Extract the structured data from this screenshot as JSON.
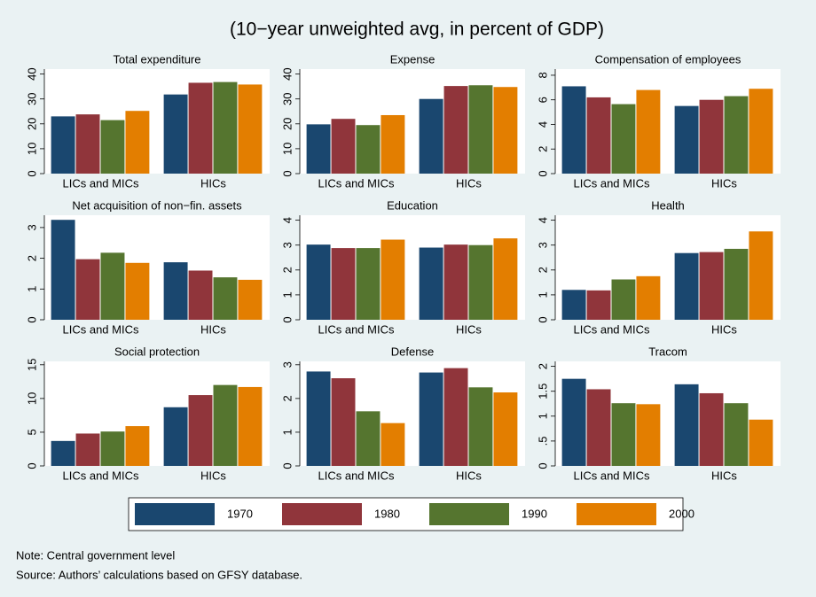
{
  "title": "(10−year unweighted avg, in percent of GDP)",
  "note": "Note: Central government level",
  "source": "Source: Authors’ calculations based on GFSY database.",
  "chart_data": [
    {
      "type": "bar",
      "title": "Total expenditure",
      "categories": [
        "LICs and MICs",
        "HICs"
      ],
      "ylim": [
        0,
        42
      ],
      "yticks": [
        0,
        10,
        20,
        30,
        40
      ],
      "grid": false,
      "series": [
        {
          "name": "1970",
          "color": "#1a476f",
          "values": [
            23,
            31.8
          ]
        },
        {
          "name": "1980",
          "color": "#90353b",
          "values": [
            23.8,
            36.5
          ]
        },
        {
          "name": "1990",
          "color": "#55752f",
          "values": [
            21.5,
            36.8
          ]
        },
        {
          "name": "2000",
          "color": "#e37e00",
          "values": [
            25.2,
            35.8
          ]
        }
      ]
    },
    {
      "type": "bar",
      "title": "Expense",
      "categories": [
        "LICs and MICs",
        "HICs"
      ],
      "ylim": [
        0,
        42
      ],
      "yticks": [
        0,
        10,
        20,
        30,
        40
      ],
      "grid": false,
      "series": [
        {
          "name": "1970",
          "color": "#1a476f",
          "values": [
            19.8,
            30
          ]
        },
        {
          "name": "1980",
          "color": "#90353b",
          "values": [
            22,
            35.2
          ]
        },
        {
          "name": "1990",
          "color": "#55752f",
          "values": [
            19.5,
            35.5
          ]
        },
        {
          "name": "2000",
          "color": "#e37e00",
          "values": [
            23.5,
            34.8
          ]
        }
      ]
    },
    {
      "type": "bar",
      "title": "Compensation of employees",
      "categories": [
        "LICs and MICs",
        "HICs"
      ],
      "ylim": [
        0,
        8.5
      ],
      "yticks": [
        0,
        2,
        4,
        6,
        8
      ],
      "grid": false,
      "series": [
        {
          "name": "1970",
          "color": "#1a476f",
          "values": [
            7.1,
            5.5
          ]
        },
        {
          "name": "1980",
          "color": "#90353b",
          "values": [
            6.2,
            6.0
          ]
        },
        {
          "name": "1990",
          "color": "#55752f",
          "values": [
            5.65,
            6.3
          ]
        },
        {
          "name": "2000",
          "color": "#e37e00",
          "values": [
            6.8,
            6.9
          ]
        }
      ]
    },
    {
      "type": "bar",
      "title": "Net acquisition of non−fin. assets",
      "categories": [
        "LICs and MICs",
        "HICs"
      ],
      "ylim": [
        0,
        3.4
      ],
      "yticks": [
        0,
        1,
        2,
        3
      ],
      "grid": false,
      "series": [
        {
          "name": "1970",
          "color": "#1a476f",
          "values": [
            3.25,
            1.87
          ]
        },
        {
          "name": "1980",
          "color": "#90353b",
          "values": [
            1.97,
            1.6
          ]
        },
        {
          "name": "1990",
          "color": "#55752f",
          "values": [
            2.18,
            1.38
          ]
        },
        {
          "name": "2000",
          "color": "#e37e00",
          "values": [
            1.85,
            1.3
          ]
        }
      ]
    },
    {
      "type": "bar",
      "title": "Education",
      "categories": [
        "LICs and MICs",
        "HICs"
      ],
      "ylim": [
        0,
        4.2
      ],
      "yticks": [
        0,
        1,
        2,
        3,
        4
      ],
      "grid": false,
      "series": [
        {
          "name": "1970",
          "color": "#1a476f",
          "values": [
            3.02,
            2.9
          ]
        },
        {
          "name": "1980",
          "color": "#90353b",
          "values": [
            2.88,
            3.02
          ]
        },
        {
          "name": "1990",
          "color": "#55752f",
          "values": [
            2.88,
            3.0
          ]
        },
        {
          "name": "2000",
          "color": "#e37e00",
          "values": [
            3.22,
            3.27
          ]
        }
      ]
    },
    {
      "type": "bar",
      "title": "Health",
      "categories": [
        "LICs and MICs",
        "HICs"
      ],
      "ylim": [
        0,
        4.2
      ],
      "yticks": [
        0,
        1,
        2,
        3,
        4
      ],
      "grid": false,
      "series": [
        {
          "name": "1970",
          "color": "#1a476f",
          "values": [
            1.2,
            2.68
          ]
        },
        {
          "name": "1980",
          "color": "#90353b",
          "values": [
            1.18,
            2.72
          ]
        },
        {
          "name": "1990",
          "color": "#55752f",
          "values": [
            1.62,
            2.85
          ]
        },
        {
          "name": "2000",
          "color": "#e37e00",
          "values": [
            1.75,
            3.55
          ]
        }
      ]
    },
    {
      "type": "bar",
      "title": "Social protection",
      "categories": [
        "LICs and MICs",
        "HICs"
      ],
      "ylim": [
        0,
        15.5
      ],
      "yticks": [
        0,
        5,
        10,
        15
      ],
      "grid": false,
      "series": [
        {
          "name": "1970",
          "color": "#1a476f",
          "values": [
            3.7,
            8.7
          ]
        },
        {
          "name": "1980",
          "color": "#90353b",
          "values": [
            4.8,
            10.5
          ]
        },
        {
          "name": "1990",
          "color": "#55752f",
          "values": [
            5.1,
            12.0
          ]
        },
        {
          "name": "2000",
          "color": "#e37e00",
          "values": [
            5.9,
            11.7
          ]
        }
      ]
    },
    {
      "type": "bar",
      "title": "Defense",
      "categories": [
        "LICs and MICs",
        "HICs"
      ],
      "ylim": [
        0,
        3.1
      ],
      "yticks": [
        0,
        1,
        2,
        3
      ],
      "grid": false,
      "series": [
        {
          "name": "1970",
          "color": "#1a476f",
          "values": [
            2.8,
            2.77
          ]
        },
        {
          "name": "1980",
          "color": "#90353b",
          "values": [
            2.6,
            2.9
          ]
        },
        {
          "name": "1990",
          "color": "#55752f",
          "values": [
            1.62,
            2.33
          ]
        },
        {
          "name": "2000",
          "color": "#e37e00",
          "values": [
            1.27,
            2.18
          ]
        }
      ]
    },
    {
      "type": "bar",
      "title": "Tracom",
      "categories": [
        "LICs and MICs",
        "HICs"
      ],
      "ylim": [
        0,
        2.1
      ],
      "yticks": [
        0,
        {
          "value": 0.5,
          "label": ".5"
        },
        1,
        1.5,
        2
      ],
      "grid": false,
      "series": [
        {
          "name": "1970",
          "color": "#1a476f",
          "values": [
            1.75,
            1.64
          ]
        },
        {
          "name": "1980",
          "color": "#90353b",
          "values": [
            1.54,
            1.46
          ]
        },
        {
          "name": "1990",
          "color": "#55752f",
          "values": [
            1.26,
            1.26
          ]
        },
        {
          "name": "2000",
          "color": "#e37e00",
          "values": [
            1.24,
            0.93
          ]
        }
      ]
    }
  ]
}
